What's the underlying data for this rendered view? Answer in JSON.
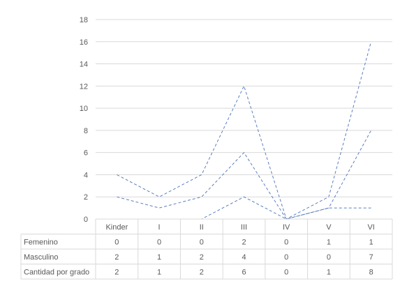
{
  "chart_data": {
    "type": "line",
    "stacked": true,
    "categories": [
      "Kinder",
      "I",
      "II",
      "III",
      "IV",
      "V",
      "VI"
    ],
    "series": [
      {
        "name": "Femenino",
        "values": [
          0,
          0,
          0,
          2,
          0,
          1,
          1
        ],
        "color": "#5b7fbf"
      },
      {
        "name": "Masculino",
        "values": [
          2,
          1,
          2,
          4,
          0,
          0,
          7
        ],
        "color": "#5b7fbf"
      },
      {
        "name": "Cantidad por grado",
        "values": [
          2,
          1,
          2,
          6,
          0,
          1,
          8
        ],
        "color": "#5b7fbf"
      }
    ],
    "y_ticks": [
      "0",
      "2",
      "4",
      "6",
      "8",
      "10",
      "12",
      "14",
      "16",
      "18"
    ],
    "ylim": [
      0,
      18
    ],
    "grid": true,
    "line_style": "dashed",
    "legend": "data-table"
  }
}
